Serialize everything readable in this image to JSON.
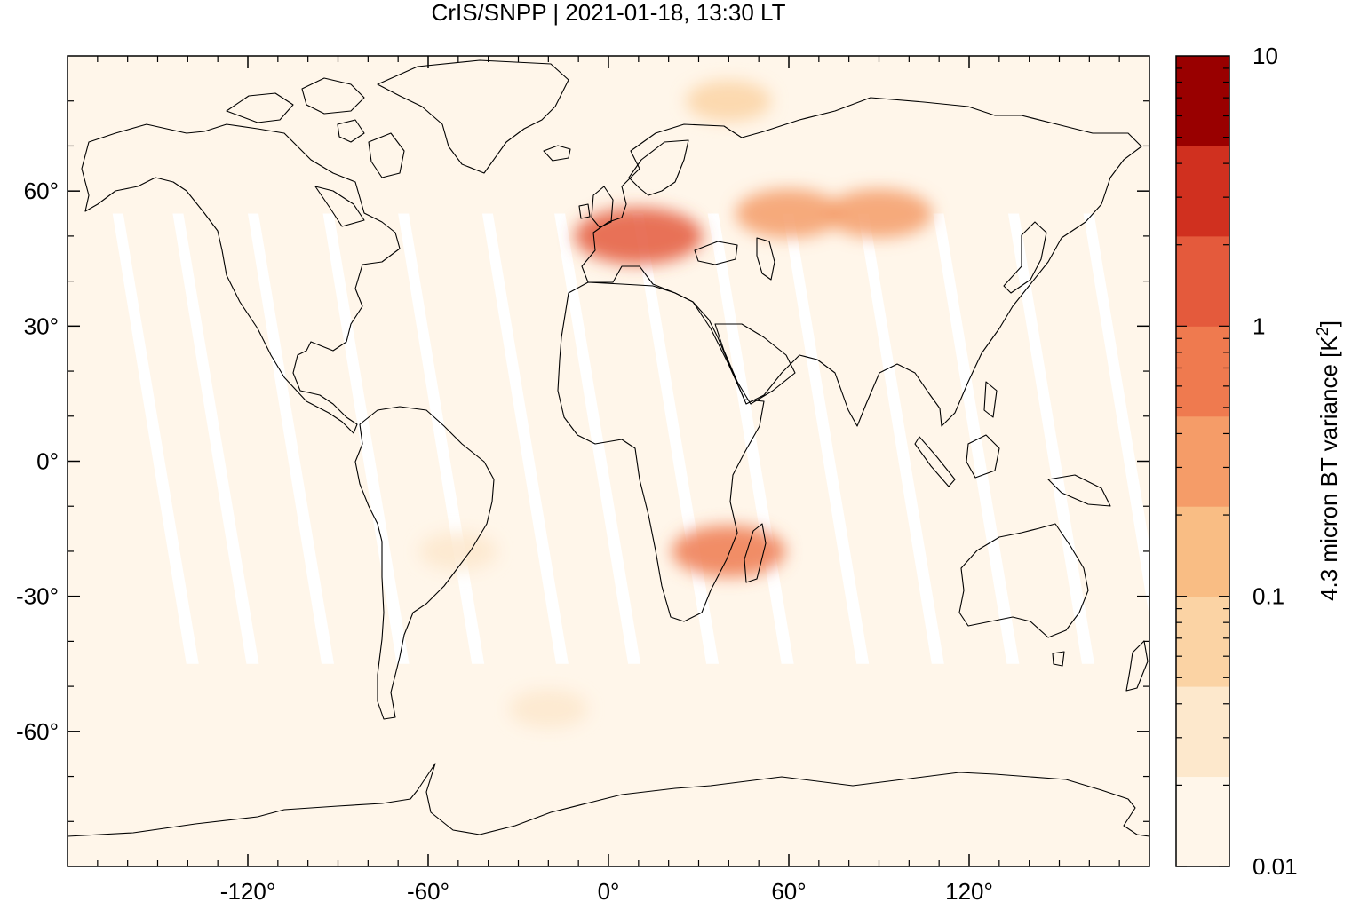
{
  "title": "CrIS/SNPP | 2021-01-18, 13:30 LT",
  "map": {
    "projection": "equirectangular",
    "lon_range": [
      -180,
      180
    ],
    "lat_range": [
      -90,
      90
    ],
    "background_color": "#fff6ea",
    "swath_gap_color": "#ffffff",
    "coastline_color": "#000000",
    "x_ticks": [
      {
        "value": -120,
        "label": "-120°"
      },
      {
        "value": -60,
        "label": "-60°"
      },
      {
        "value": 0,
        "label": "0°"
      },
      {
        "value": 60,
        "label": "60°"
      },
      {
        "value": 120,
        "label": "120°"
      }
    ],
    "y_ticks": [
      {
        "value": 60,
        "label": "60°"
      },
      {
        "value": 30,
        "label": "30°"
      },
      {
        "value": 0,
        "label": "0°"
      },
      {
        "value": -30,
        "label": "-30°"
      },
      {
        "value": -60,
        "label": "-60°"
      }
    ],
    "features": [
      {
        "region": "Western Europe",
        "lon": 10,
        "lat": 50,
        "level": 0.8
      },
      {
        "region": "Eastern Europe / Russia",
        "lon": 60,
        "lat": 55,
        "level": 0.5
      },
      {
        "region": "Central Asia",
        "lon": 90,
        "lat": 55,
        "level": 0.5
      },
      {
        "region": "Mozambique Channel",
        "lon": 40,
        "lat": -20,
        "level": 0.6
      },
      {
        "region": "Arctic",
        "lon": 40,
        "lat": 80,
        "level": 0.2
      },
      {
        "region": "South America",
        "lon": -50,
        "lat": -20,
        "level": 0.1
      },
      {
        "region": "Southern Ocean",
        "lon": -20,
        "lat": -55,
        "level": 0.1
      }
    ]
  },
  "colorbar": {
    "label": "4.3 micron BT variance [K²]",
    "label_base": "4.3 micron BT variance [K",
    "label_sup": "2",
    "label_end": "]",
    "scale": "log",
    "range": [
      0.01,
      10
    ],
    "tick_labels": [
      {
        "value": 10,
        "label": "10"
      },
      {
        "value": 1,
        "label": "1"
      },
      {
        "value": 0.1,
        "label": "0.1"
      },
      {
        "value": 0.01,
        "label": "0.01"
      }
    ],
    "colors": [
      "#fff6ea",
      "#fde8cc",
      "#fbd3a4",
      "#f9bd84",
      "#f59c68",
      "#ef7a4f",
      "#e45a3c",
      "#d0301f",
      "#990000"
    ]
  }
}
